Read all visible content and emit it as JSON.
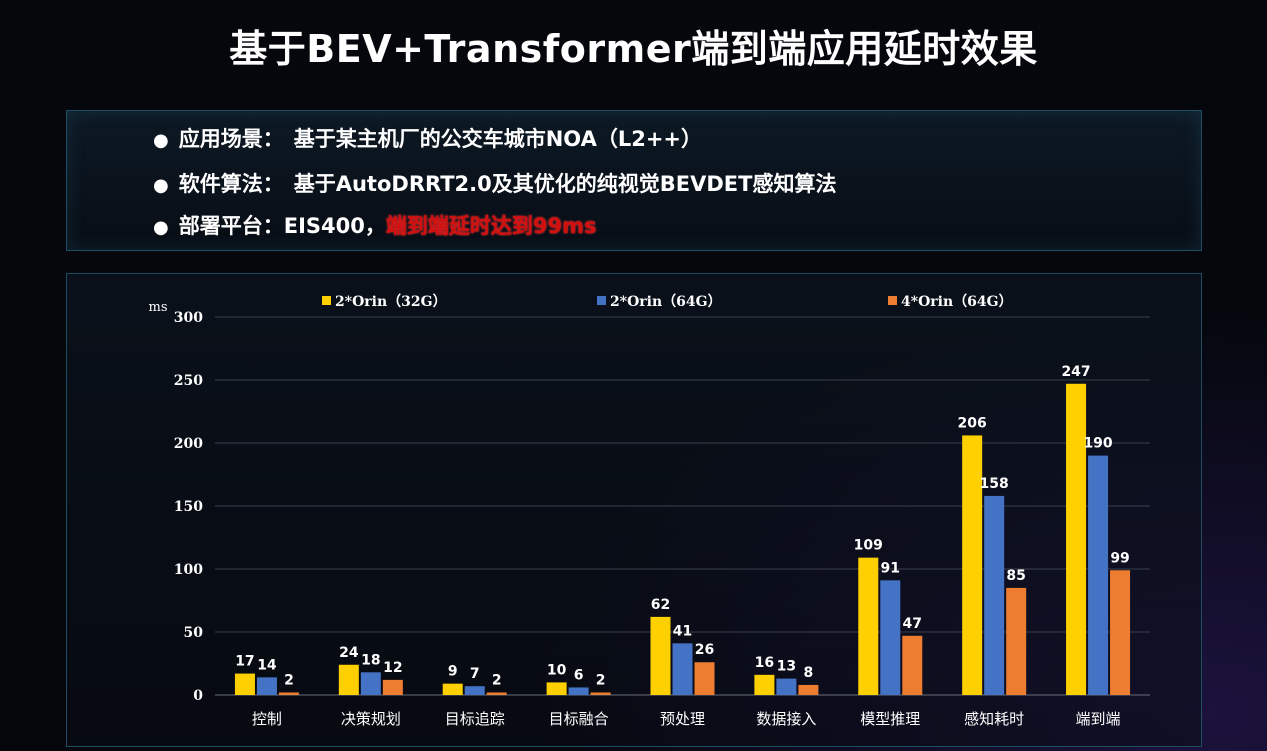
{
  "title": "基于BEV+Transformer端到端应用延时效果",
  "info": {
    "bullet_symbol": "●",
    "rows": [
      {
        "label": "应用场景：",
        "text": "基于某主机厂的公交车城市NOA（L2++）",
        "highlight": ""
      },
      {
        "label": "软件算法：",
        "text": "基于AutoDRRT2.0及其优化的纯视觉BEVDET感知算法",
        "highlight": ""
      },
      {
        "label": "部署平台：",
        "text": "EIS400，",
        "highlight": "端到端延时达到99ms"
      }
    ]
  },
  "chart_data": {
    "type": "bar",
    "title": "",
    "ylabel": "ms",
    "xlabel": "",
    "ylim": [
      0,
      300
    ],
    "yticks": [
      0,
      50,
      100,
      150,
      200,
      250,
      300
    ],
    "grid": true,
    "legend_position": "top",
    "categories": [
      "控制",
      "决策规划",
      "目标追踪",
      "目标融合",
      "预处理",
      "数据接入",
      "模型推理",
      "感知耗时",
      "端到端"
    ],
    "series": [
      {
        "name": "2*Orin（32G）",
        "color": "#ffd000",
        "values": [
          17,
          24,
          9,
          10,
          62,
          16,
          109,
          206,
          247
        ]
      },
      {
        "name": "2*Orin（64G）",
        "color": "#4472c4",
        "values": [
          14,
          18,
          7,
          6,
          41,
          13,
          91,
          158,
          190
        ]
      },
      {
        "name": "4*Orin（64G）",
        "color": "#ed7d31",
        "values": [
          2,
          12,
          2,
          2,
          26,
          8,
          47,
          85,
          99
        ]
      }
    ]
  }
}
